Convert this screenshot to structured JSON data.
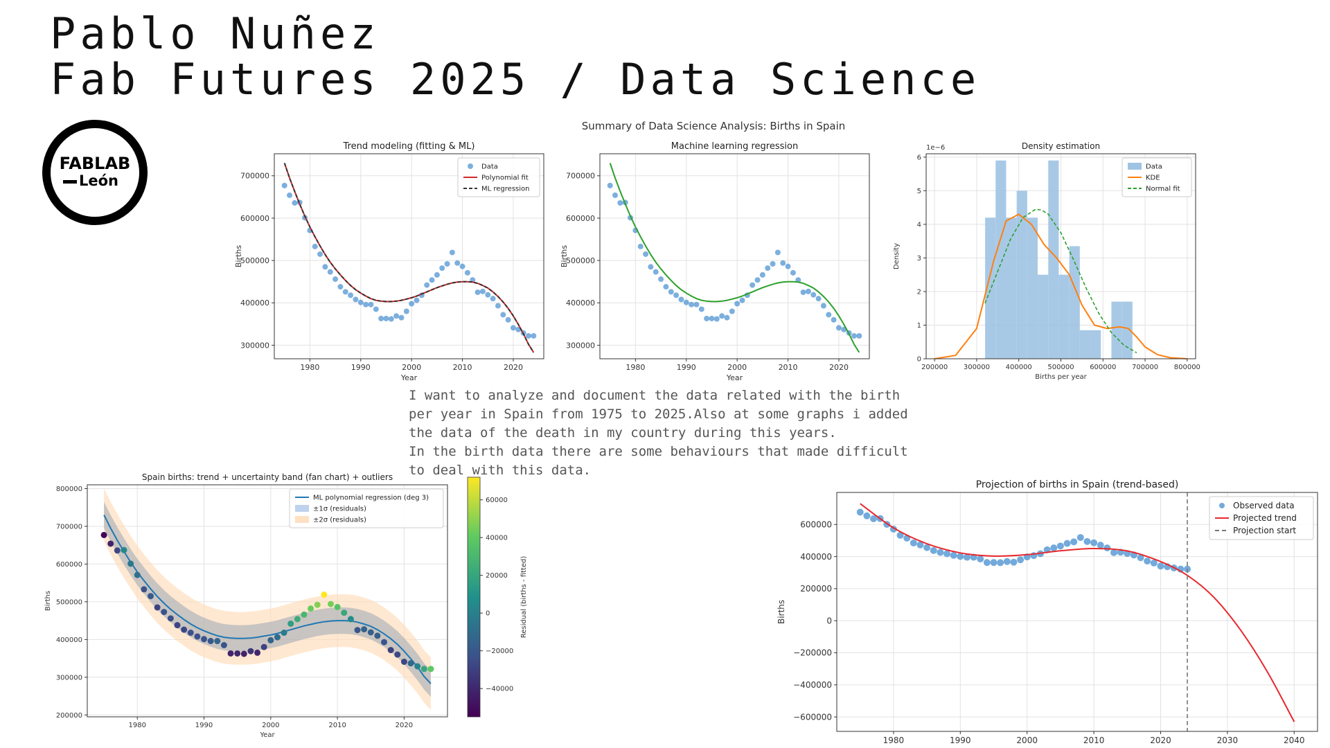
{
  "header": {
    "line1": "Pablo Nuñez",
    "line2": "Fab Futures 2025 / Data Science"
  },
  "logo": {
    "line1": "FABLAB",
    "line2": "León"
  },
  "summary_title": "Summary of Data Science Analysis: Births in Spain",
  "description": [
    "I want to analyze and document the data related with the birth",
    "per year in Spain from 1975 to 2025.Also at some graphs i added",
    "the data of the death in my country during this years.",
    "In the birth data there are some behaviours that made difficult",
    "to deal with this data."
  ],
  "colors": {
    "data": "#5b9bd5",
    "poly": "#d62728",
    "ml": "#333333",
    "green": "#2ca02c",
    "kde": "#ff7f0e",
    "hist": "#9ec3e3",
    "trend": "#1f77b4",
    "band1": "#aec7e8",
    "band2": "#ffd8b3"
  },
  "chart_data": [
    {
      "type": "scatter",
      "title": "Trend modeling (fitting & ML)",
      "xlabel": "Year",
      "ylabel": "Births",
      "xlim": [
        1973,
        2026
      ],
      "ylim": [
        268000,
        752000
      ],
      "xticks": [
        1980,
        1990,
        2000,
        2010,
        2020
      ],
      "yticks": [
        300000,
        400000,
        500000,
        600000,
        700000
      ],
      "ytick_labels": [
        "300000",
        "400000",
        "500000",
        "600000",
        "700000"
      ],
      "legend": [
        "Data",
        "Polynomial fit",
        "ML regression"
      ],
      "legend_position": "top-right",
      "grid": true
    },
    {
      "type": "scatter",
      "title": "Machine learning regression",
      "xlabel": "Year",
      "ylabel": "Births",
      "xlim": [
        1973,
        2026
      ],
      "ylim": [
        268000,
        752000
      ],
      "xticks": [
        1980,
        1990,
        2000,
        2010,
        2020
      ],
      "yticks": [
        300000,
        400000,
        500000,
        600000,
        700000
      ],
      "ytick_labels": [
        "300000",
        "400000",
        "500000",
        "600000",
        "700000"
      ],
      "grid": true
    },
    {
      "type": "bar",
      "title": "Density estimation",
      "xlabel": "Births per year",
      "ylabel": "Density",
      "exponent_label": "1e−6",
      "xlim": [
        180000,
        820000
      ],
      "ylim": [
        0,
        6.1
      ],
      "xticks": [
        200000,
        300000,
        400000,
        500000,
        600000,
        700000,
        800000
      ],
      "xtick_labels": [
        "200000",
        "300000",
        "400000",
        "500000",
        "600000",
        "700000",
        "800000"
      ],
      "yticks": [
        0,
        1,
        2,
        3,
        4,
        5,
        6
      ],
      "ytick_labels": [
        "0",
        "1",
        "2",
        "3",
        "4",
        "5",
        "6"
      ],
      "legend": [
        "Data",
        "KDE",
        "Normal fit"
      ],
      "legend_position": "top-right",
      "grid": true
    },
    {
      "type": "scatter",
      "title": "Spain births: trend + uncertainty band (fan chart) + outliers",
      "xlabel": "Year",
      "ylabel": "Births",
      "xlim": [
        1972.5,
        2026.5
      ],
      "ylim": [
        195000,
        810000
      ],
      "xticks": [
        1980,
        1990,
        2000,
        2010,
        2020
      ],
      "yticks": [
        200000,
        300000,
        400000,
        500000,
        600000,
        700000,
        800000
      ],
      "ytick_labels": [
        "200000",
        "300000",
        "400000",
        "500000",
        "600000",
        "700000",
        "800000"
      ],
      "legend": [
        "ML polynomial regression (deg 3)",
        "±1σ (residuals)",
        "±2σ (residuals)"
      ],
      "legend_position": "top-right",
      "colorbar_label": "Residual (births - fitted)",
      "colorbar_range": [
        -55000,
        72000
      ],
      "colorbar_ticks": [
        60000,
        40000,
        20000,
        0,
        -20000,
        -40000
      ],
      "colorbar_tick_labels": [
        "60000",
        "40000",
        "20000",
        "0",
        "−20000",
        "−40000"
      ],
      "sigma": 35000,
      "grid": true
    },
    {
      "type": "line",
      "title": "Projection of births in Spain (trend-based)",
      "xlabel": "Year",
      "ylabel": "Births",
      "xlim": [
        1971.5,
        2043.5
      ],
      "ylim": [
        -690000,
        800000
      ],
      "xticks": [
        1980,
        1990,
        2000,
        2010,
        2020,
        2030,
        2040
      ],
      "yticks": [
        -600000,
        -400000,
        -200000,
        0,
        200000,
        400000,
        600000
      ],
      "ytick_labels": [
        "−600000",
        "−400000",
        "−200000",
        "0",
        "200000",
        "400000",
        "600000"
      ],
      "legend": [
        "Observed data",
        "Projected trend",
        "Projection start"
      ],
      "legend_position": "top-right",
      "projection_start": 2024,
      "projection_end": 2040,
      "grid": true
    }
  ],
  "births": {
    "years": [
      1975,
      1976,
      1977,
      1978,
      1979,
      1980,
      1981,
      1982,
      1983,
      1984,
      1985,
      1986,
      1987,
      1988,
      1989,
      1990,
      1991,
      1992,
      1993,
      1994,
      1995,
      1996,
      1997,
      1998,
      1999,
      2000,
      2001,
      2002,
      2003,
      2004,
      2005,
      2006,
      2007,
      2008,
      2009,
      2010,
      2011,
      2012,
      2013,
      2014,
      2015,
      2016,
      2017,
      2018,
      2019,
      2020,
      2021,
      2022,
      2023,
      2024
    ],
    "values": [
      677000,
      654000,
      636000,
      637000,
      601000,
      571000,
      533000,
      515000,
      485000,
      473000,
      456000,
      438000,
      426000,
      418000,
      408000,
      401000,
      396000,
      396000,
      385000,
      363000,
      363000,
      362000,
      369000,
      365000,
      380000,
      398000,
      406000,
      418000,
      442000,
      454000,
      466000,
      482000,
      492000,
      519000,
      494000,
      486000,
      471000,
      454000,
      425000,
      427000,
      419000,
      410000,
      393000,
      372000,
      360000,
      341000,
      337000,
      329000,
      322000,
      322000
    ],
    "trend": [
      730000,
      695000,
      663000,
      633000,
      605000,
      579000,
      556000,
      534000,
      514000,
      496000,
      480000,
      466000,
      453000,
      441000,
      431000,
      423000,
      416000,
      410000,
      406000,
      404000,
      403000,
      403000,
      404000,
      406000,
      409000,
      412000,
      416000,
      421000,
      426000,
      431000,
      436000,
      440000,
      444000,
      447000,
      449000,
      450000,
      450000,
      449000,
      446000,
      441000,
      435000,
      426000,
      415000,
      402000,
      387000,
      369000,
      349000,
      327000,
      302000,
      283000
    ]
  },
  "density": {
    "hist_bins": [
      [
        320000,
        345000,
        4.2
      ],
      [
        345000,
        370000,
        5.9
      ],
      [
        370000,
        395000,
        4.2
      ],
      [
        395000,
        420000,
        5.0
      ],
      [
        420000,
        445000,
        4.2
      ],
      [
        445000,
        470000,
        2.5
      ],
      [
        470000,
        495000,
        5.9
      ],
      [
        495000,
        520000,
        2.5
      ],
      [
        520000,
        545000,
        3.35
      ],
      [
        545000,
        570000,
        0.85
      ],
      [
        570000,
        595000,
        0.85
      ],
      [
        595000,
        620000,
        0
      ],
      [
        620000,
        645000,
        1.7
      ],
      [
        645000,
        670000,
        1.7
      ]
    ],
    "kde_x": [
      200000,
      250000,
      300000,
      340000,
      370000,
      400000,
      430000,
      460000,
      490000,
      520000,
      550000,
      580000,
      610000,
      640000,
      660000,
      680000,
      700000,
      730000,
      760000,
      800000
    ],
    "kde_y": [
      0,
      0.1,
      0.9,
      2.9,
      4.1,
      4.3,
      4.0,
      3.4,
      3.0,
      2.5,
      1.6,
      1.0,
      0.9,
      0.95,
      0.9,
      0.65,
      0.35,
      0.12,
      0.03,
      0
    ],
    "normal_x": [
      320000,
      350000,
      380000,
      410000,
      440000,
      455000,
      470000,
      500000,
      530000,
      560000,
      590000,
      620000,
      650000,
      680000
    ],
    "normal_y": [
      1.65,
      2.6,
      3.55,
      4.2,
      4.45,
      4.42,
      4.3,
      3.75,
      2.95,
      2.1,
      1.35,
      0.78,
      0.4,
      0.18
    ]
  },
  "projection": {
    "years": [
      1975,
      1980,
      1985,
      1990,
      1995,
      2000,
      2005,
      2010,
      2015,
      2020,
      2024,
      2028,
      2032,
      2036,
      2040
    ],
    "values": [
      730000,
      579000,
      480000,
      423000,
      403000,
      412000,
      436000,
      450000,
      435000,
      369000,
      283000,
      145000,
      -60000,
      -320000,
      -630000
    ]
  }
}
